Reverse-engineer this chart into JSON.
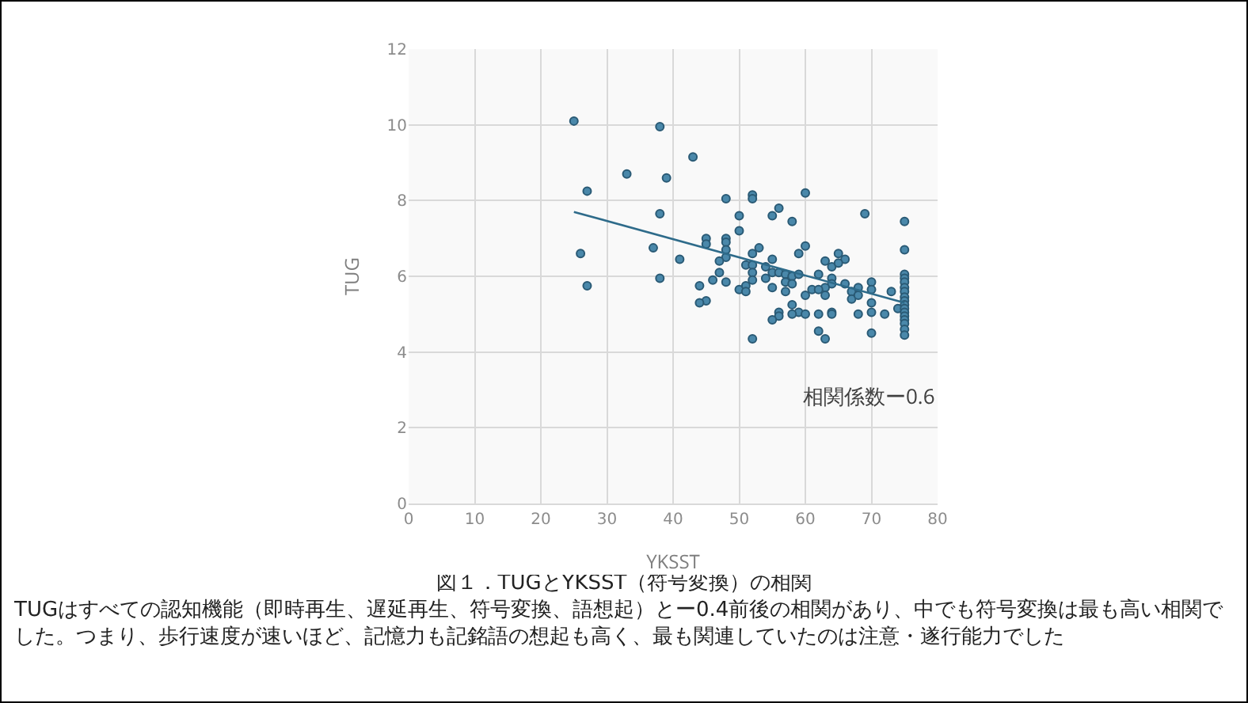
{
  "chart_data": {
    "type": "scatter",
    "title": "図１．TUGとYKSST（符号変換）の相関",
    "xlabel": "YKSST",
    "ylabel": "TUG",
    "xlim": [
      0,
      80
    ],
    "xticks": [
      0,
      10,
      20,
      30,
      40,
      50,
      60,
      70,
      80
    ],
    "ylim": [
      0,
      12
    ],
    "yticks": [
      0,
      2,
      4,
      6,
      8,
      10,
      12
    ],
    "grid": true,
    "marker": "circle",
    "annotations": [
      "相関係数ー0.6",
      "TUGはすべての認知機能（即時再生、遅延再生、符号変換、語想起）とー0.4前後の相関があり、中でも符号変換は最も高い相関でした。つまり、歩行速度が速いほど、記憶力も記銘語の想起も高く、最も関連していたのは注意・遂行能力でした"
    ],
    "series": [
      {
        "type": "scatter",
        "color": "#4a88aa",
        "x": [
          25,
          38,
          43,
          33,
          39,
          27,
          48,
          52,
          52,
          60,
          56,
          55,
          38,
          69,
          50,
          58,
          75,
          50,
          37,
          26,
          45,
          45,
          48,
          48,
          48,
          48,
          47,
          53,
          52,
          59,
          60,
          75,
          41,
          55,
          51,
          52,
          54,
          65,
          66,
          63,
          64,
          65,
          38,
          27,
          47,
          46,
          44,
          48,
          52,
          52,
          54,
          55,
          56,
          57,
          57,
          57,
          58,
          58,
          59,
          62,
          64,
          64,
          63,
          61,
          62,
          66,
          67,
          67,
          68,
          68,
          70,
          70,
          73,
          50,
          51,
          51,
          55,
          60,
          63,
          45,
          44,
          58,
          59,
          58,
          60,
          56,
          56,
          55,
          62,
          64,
          64,
          68,
          70,
          70,
          72,
          74,
          62,
          63,
          52,
          70,
          75,
          75,
          75,
          75,
          75,
          75,
          75,
          75,
          75,
          75,
          75,
          75,
          75,
          75,
          75
        ],
        "values": [
          10.1,
          9.95,
          9.15,
          8.7,
          8.6,
          8.25,
          8.05,
          8.15,
          8.05,
          8.2,
          7.8,
          7.6,
          7.65,
          7.65,
          7.6,
          7.45,
          7.45,
          7.2,
          6.75,
          6.6,
          7.0,
          6.85,
          7.0,
          6.9,
          6.7,
          6.5,
          6.4,
          6.75,
          6.6,
          6.6,
          6.8,
          6.7,
          6.45,
          6.45,
          6.3,
          6.3,
          6.25,
          6.6,
          6.45,
          6.4,
          6.25,
          6.35,
          5.95,
          5.75,
          6.1,
          5.9,
          5.75,
          5.85,
          6.1,
          5.9,
          5.95,
          6.1,
          6.1,
          6.05,
          5.85,
          5.6,
          6.0,
          5.8,
          6.05,
          6.05,
          5.95,
          5.8,
          5.7,
          5.65,
          5.65,
          5.8,
          5.6,
          5.4,
          5.7,
          5.5,
          5.85,
          5.65,
          5.6,
          5.65,
          5.75,
          5.6,
          5.7,
          5.5,
          5.5,
          5.35,
          5.3,
          5.25,
          5.05,
          5.0,
          5.0,
          5.05,
          4.95,
          4.85,
          5.0,
          5.05,
          5.0,
          5.0,
          5.3,
          5.05,
          5.0,
          5.15,
          4.55,
          4.35,
          4.35,
          4.5,
          6.05,
          5.95,
          5.85,
          5.7,
          5.6,
          5.45,
          5.35,
          5.25,
          5.15,
          5.05,
          4.95,
          4.85,
          4.75,
          4.6,
          4.45
        ]
      },
      {
        "type": "line",
        "color": "#2e6b8a",
        "marker": "none",
        "x": [
          25,
          75
        ],
        "values": [
          7.7,
          5.3
        ]
      }
    ]
  }
}
